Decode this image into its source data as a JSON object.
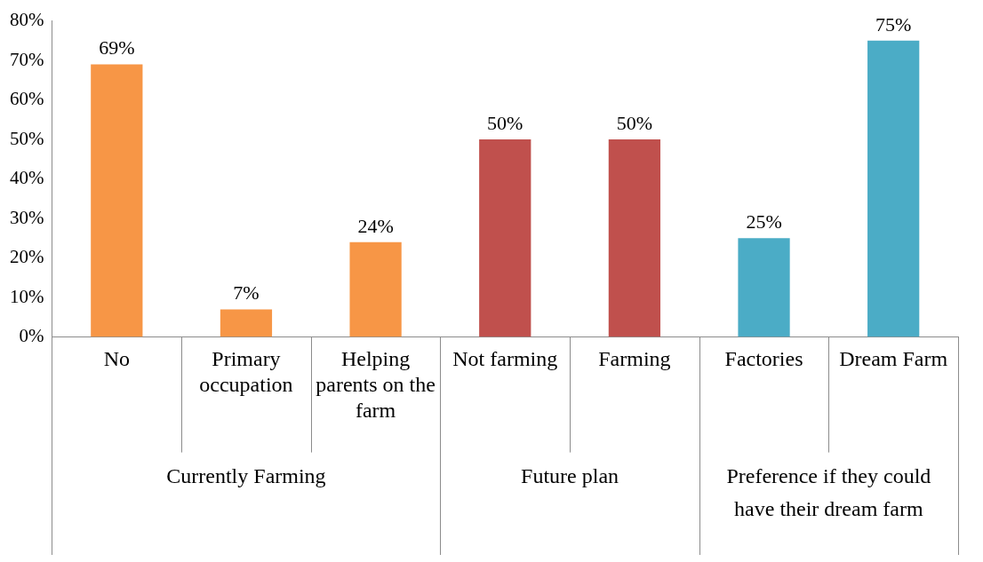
{
  "chart_data": {
    "type": "bar",
    "categories": [
      "No",
      "Primary occupation",
      "Helping parents on the farm",
      "Not farming",
      "Farming",
      "Factories",
      "Dream Farm"
    ],
    "values": [
      69,
      7,
      24,
      50,
      50,
      25,
      75
    ],
    "colors": [
      "#f79646",
      "#f79646",
      "#f79646",
      "#c0504d",
      "#c0504d",
      "#4bacc6",
      "#4bacc6"
    ],
    "ylim": [
      0,
      80
    ],
    "yticks": [
      {
        "value": 0,
        "label": "0%"
      },
      {
        "value": 10,
        "label": "10%"
      },
      {
        "value": 20,
        "label": "20%"
      },
      {
        "value": 30,
        "label": "30%"
      },
      {
        "value": 40,
        "label": "40%"
      },
      {
        "value": 50,
        "label": "50%"
      },
      {
        "value": 60,
        "label": "60%"
      },
      {
        "value": 70,
        "label": "70%"
      },
      {
        "value": 80,
        "label": "80%"
      }
    ],
    "value_labels": [
      "69%",
      "7%",
      "24%",
      "50%",
      "50%",
      "25%",
      "75%"
    ],
    "annotations": [
      "Currently Farming",
      "Future plan",
      "Preference if they could have their dream farm"
    ],
    "grid": false,
    "legend": false
  }
}
